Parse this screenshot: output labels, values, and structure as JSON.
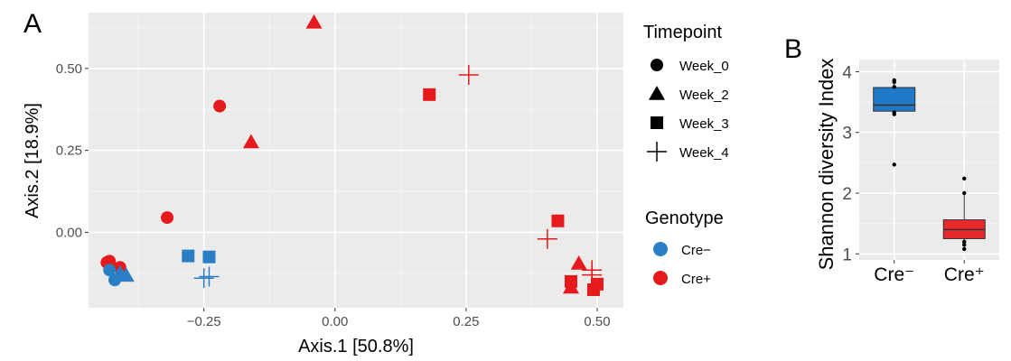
{
  "chart_data": [
    {
      "type": "scatter",
      "panel_label": "A",
      "xlabel": "Axis.1   [50.8%]",
      "ylabel": "Axis.2   [18.9%]",
      "xlim": [
        -0.47,
        0.55
      ],
      "ylim": [
        -0.23,
        0.67
      ],
      "x_ticks": [
        -0.25,
        0.0,
        0.25,
        0.5
      ],
      "x_tick_labels": [
        "−0.25",
        "0.00",
        "0.25",
        "0.50"
      ],
      "y_ticks": [
        0.0,
        0.25,
        0.5
      ],
      "y_tick_labels": [
        "0.00",
        "0.25",
        "0.50"
      ],
      "grid": true,
      "legend_shape": {
        "title": "Timepoint",
        "entries": [
          {
            "label": "Week_0",
            "shape": "circle"
          },
          {
            "label": "Week_2",
            "shape": "triangle"
          },
          {
            "label": "Week_3",
            "shape": "square"
          },
          {
            "label": "Week_4",
            "shape": "plus"
          }
        ]
      },
      "legend_color": {
        "title": "Genotype",
        "entries": [
          {
            "label": "Cre−",
            "color": "#2a7fc4"
          },
          {
            "label": "Cre+",
            "color": "#e41a1c"
          }
        ]
      },
      "points": [
        {
          "x": -0.04,
          "y": 0.64,
          "shape": "triangle",
          "genotype": "Cre+"
        },
        {
          "x": 0.255,
          "y": 0.48,
          "shape": "plus",
          "genotype": "Cre+"
        },
        {
          "x": 0.18,
          "y": 0.42,
          "shape": "square",
          "genotype": "Cre+"
        },
        {
          "x": -0.22,
          "y": 0.385,
          "shape": "circle",
          "genotype": "Cre+"
        },
        {
          "x": -0.16,
          "y": 0.275,
          "shape": "triangle",
          "genotype": "Cre+"
        },
        {
          "x": -0.32,
          "y": 0.045,
          "shape": "circle",
          "genotype": "Cre+"
        },
        {
          "x": 0.425,
          "y": 0.035,
          "shape": "square",
          "genotype": "Cre+"
        },
        {
          "x": 0.405,
          "y": -0.02,
          "shape": "plus",
          "genotype": "Cre+"
        },
        {
          "x": 0.465,
          "y": -0.095,
          "shape": "triangle",
          "genotype": "Cre+"
        },
        {
          "x": 0.49,
          "y": -0.115,
          "shape": "plus",
          "genotype": "Cre+"
        },
        {
          "x": 0.49,
          "y": -0.13,
          "shape": "plus",
          "genotype": "Cre+"
        },
        {
          "x": 0.45,
          "y": -0.15,
          "shape": "square",
          "genotype": "Cre+"
        },
        {
          "x": 0.45,
          "y": -0.168,
          "shape": "triangle",
          "genotype": "Cre+"
        },
        {
          "x": 0.5,
          "y": -0.158,
          "shape": "square",
          "genotype": "Cre+"
        },
        {
          "x": 0.493,
          "y": -0.175,
          "shape": "square",
          "genotype": "Cre+"
        },
        {
          "x": -0.435,
          "y": -0.092,
          "shape": "circle",
          "genotype": "Cre+"
        },
        {
          "x": -0.43,
          "y": -0.088,
          "shape": "circle",
          "genotype": "Cre+"
        },
        {
          "x": -0.41,
          "y": -0.107,
          "shape": "circle",
          "genotype": "Cre+"
        },
        {
          "x": -0.43,
          "y": -0.115,
          "shape": "circle",
          "genotype": "Cre−"
        },
        {
          "x": -0.42,
          "y": -0.145,
          "shape": "circle",
          "genotype": "Cre−"
        },
        {
          "x": -0.41,
          "y": -0.125,
          "shape": "triangle",
          "genotype": "Cre−"
        },
        {
          "x": -0.398,
          "y": -0.132,
          "shape": "triangle",
          "genotype": "Cre−"
        },
        {
          "x": -0.28,
          "y": -0.072,
          "shape": "square",
          "genotype": "Cre−"
        },
        {
          "x": -0.24,
          "y": -0.075,
          "shape": "square",
          "genotype": "Cre−"
        },
        {
          "x": -0.24,
          "y": -0.135,
          "shape": "plus",
          "genotype": "Cre−"
        },
        {
          "x": -0.25,
          "y": -0.14,
          "shape": "plus",
          "genotype": "Cre−"
        }
      ]
    },
    {
      "type": "box",
      "panel_label": "B",
      "ylabel": "Shannon diversity Index",
      "ylim": [
        0.9,
        4.2
      ],
      "y_ticks": [
        1,
        2,
        3,
        4
      ],
      "y_tick_labels": [
        "1",
        "2",
        "3",
        "4"
      ],
      "categories": [
        "Cre⁻",
        "Cre⁺"
      ],
      "grid": true,
      "boxes": [
        {
          "category": "Cre⁻",
          "color": "#1f78c8",
          "q1": 3.35,
          "median": 3.45,
          "q3": 3.74,
          "whisker_low": 3.3,
          "whisker_high": 3.86,
          "points": [
            3.83,
            3.86,
            3.75,
            3.33,
            3.3,
            2.47
          ]
        },
        {
          "category": "Cre⁺",
          "color": "#e8282b",
          "q1": 1.25,
          "median": 1.4,
          "q3": 1.56,
          "whisker_low": 1.08,
          "whisker_high": 2.0,
          "points": [
            2.24,
            2.0,
            1.08,
            1.15,
            1.2
          ]
        }
      ]
    }
  ]
}
